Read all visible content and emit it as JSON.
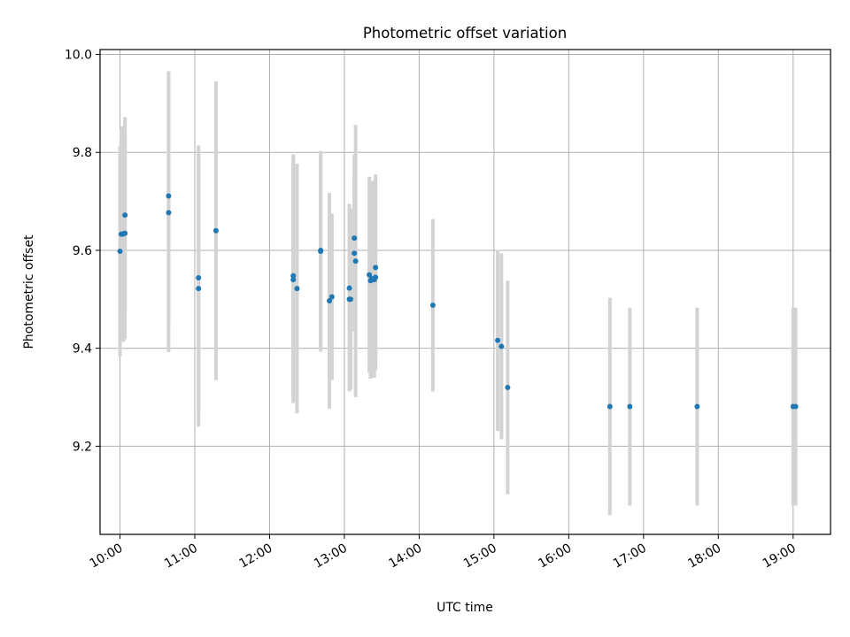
{
  "chart_data": {
    "type": "scatter",
    "title": "Photometric offset variation",
    "xlabel": "UTC time",
    "ylabel": "Photometric offset",
    "grid": true,
    "xlim": [
      "09:44",
      "19:30"
    ],
    "ylim": [
      9.02,
      10.01
    ],
    "x_ticks": [
      "10:00",
      "11:00",
      "12:00",
      "13:00",
      "14:00",
      "15:00",
      "16:00",
      "17:00",
      "18:00",
      "19:00"
    ],
    "y_ticks": [
      9.2,
      9.4,
      9.6,
      9.8,
      10.0
    ],
    "y_tick_labels": [
      "9.2",
      "9.4",
      "9.6",
      "9.8",
      "10.0"
    ],
    "point_color": "#1f77b4",
    "errorbar_color": "#d3d3d3",
    "points": [
      {
        "x": "10:00",
        "y": 9.598,
        "err": 0.215
      },
      {
        "x": "10:01",
        "y": 9.633,
        "err": 0.215
      },
      {
        "x": "10:02",
        "y": 9.633,
        "err": 0.22
      },
      {
        "x": "10:03",
        "y": 9.634,
        "err": 0.22
      },
      {
        "x": "10:04",
        "y": 9.672,
        "err": 0.2
      },
      {
        "x": "10:04",
        "y": 9.635,
        "err": 0.215
      },
      {
        "x": "10:39",
        "y": 9.711,
        "err": 0.255
      },
      {
        "x": "10:39",
        "y": 9.677,
        "err": 0.285
      },
      {
        "x": "11:03",
        "y": 9.544,
        "err": 0.27
      },
      {
        "x": "11:03",
        "y": 9.522,
        "err": 0.282
      },
      {
        "x": "11:17",
        "y": 9.64,
        "err": 0.305
      },
      {
        "x": "12:19",
        "y": 9.548,
        "err": 0.248
      },
      {
        "x": "12:19",
        "y": 9.54,
        "err": 0.252
      },
      {
        "x": "12:22",
        "y": 9.522,
        "err": 0.255
      },
      {
        "x": "12:41",
        "y": 9.6,
        "err": 0.2
      },
      {
        "x": "12:41",
        "y": 9.598,
        "err": 0.205
      },
      {
        "x": "12:48",
        "y": 9.497,
        "err": 0.22
      },
      {
        "x": "12:50",
        "y": 9.505,
        "err": 0.17
      },
      {
        "x": "13:04",
        "y": 9.523,
        "err": 0.172
      },
      {
        "x": "13:04",
        "y": 9.5,
        "err": 0.188
      },
      {
        "x": "13:05",
        "y": 9.5,
        "err": 0.185
      },
      {
        "x": "13:08",
        "y": 9.625,
        "err": 0.17
      },
      {
        "x": "13:08",
        "y": 9.594,
        "err": 0.16
      },
      {
        "x": "13:09",
        "y": 9.578,
        "err": 0.278
      },
      {
        "x": "13:20",
        "y": 9.55,
        "err": 0.2
      },
      {
        "x": "13:21",
        "y": 9.538,
        "err": 0.2
      },
      {
        "x": "13:22",
        "y": 9.542,
        "err": 0.2
      },
      {
        "x": "13:24",
        "y": 9.54,
        "err": 0.2
      },
      {
        "x": "13:25",
        "y": 9.565,
        "err": 0.19
      },
      {
        "x": "13:25",
        "y": 9.545,
        "err": 0.19
      },
      {
        "x": "14:11",
        "y": 9.488,
        "err": 0.176
      },
      {
        "x": "15:03",
        "y": 9.416,
        "err": 0.185
      },
      {
        "x": "15:06",
        "y": 9.404,
        "err": 0.19
      },
      {
        "x": "15:11",
        "y": 9.32,
        "err": 0.218
      },
      {
        "x": "16:33",
        "y": 9.281,
        "err": 0.222
      },
      {
        "x": "16:49",
        "y": 9.281,
        "err": 0.202
      },
      {
        "x": "17:43",
        "y": 9.281,
        "err": 0.202
      },
      {
        "x": "19:00",
        "y": 9.281,
        "err": 0.202
      },
      {
        "x": "19:02",
        "y": 9.281,
        "err": 0.202
      }
    ]
  }
}
